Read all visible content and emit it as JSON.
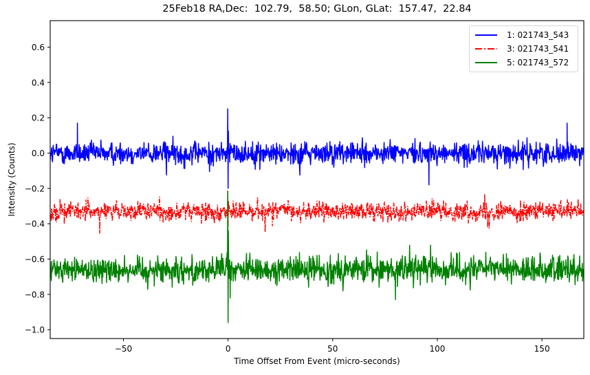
{
  "chart_data": {
    "type": "line",
    "title": "25Feb18 RA,Dec:  102.79,  58.50; GLon, GLat:  157.47,  22.84",
    "xlabel": "Time Offset From Event (micro-seconds)",
    "ylabel": "Intensity (Counts)",
    "xlim": [
      -85,
      170
    ],
    "ylim": [
      -1.05,
      0.75
    ],
    "xticks": [
      -50,
      0,
      50,
      100,
      150
    ],
    "xtick_labels": [
      "−50",
      "0",
      "50",
      "100",
      "150"
    ],
    "yticks": [
      0.6,
      0.4,
      0.2,
      0.0,
      -0.2,
      -0.4,
      -0.6,
      -0.8,
      -1.0
    ],
    "ytick_labels": [
      "0.6",
      "0.4",
      "0.2",
      "0.0",
      "−0.2",
      "−0.4",
      "−0.6",
      "−0.8",
      "−1.0"
    ],
    "grid": false,
    "legend_position": "upper right",
    "series": [
      {
        "name": "1: 021743_543",
        "color": "#0000ff",
        "linestyle": "solid",
        "baseline": 0.0,
        "noise_range": [
          -0.1,
          0.1
        ],
        "spike_at_zero": {
          "max": 0.25,
          "min": -0.2
        },
        "notable_points": [
          {
            "x": -72,
            "y": 0.17
          },
          {
            "x": 96,
            "y": -0.18
          },
          {
            "x": 162,
            "y": 0.17
          }
        ]
      },
      {
        "name": "3: 021743_541",
        "color": "#ff0000",
        "linestyle": "dashdot",
        "baseline": -0.33,
        "noise_range": [
          -0.41,
          -0.25
        ],
        "spike_at_zero": {
          "max": -0.21,
          "min": -0.42
        },
        "notable_points": []
      },
      {
        "name": "5: 021743_572",
        "color": "#008000",
        "linestyle": "solid",
        "baseline": -0.66,
        "noise_range": [
          -0.78,
          -0.55
        ],
        "spike_at_zero": {
          "max": -0.22,
          "min": -0.96
        },
        "notable_points": [
          {
            "x": 80,
            "y": -0.83
          },
          {
            "x": 1,
            "y": -0.82
          }
        ]
      }
    ]
  },
  "legend": {
    "items": [
      {
        "label": "1: 021743_543",
        "color": "#0000ff",
        "style": "solid"
      },
      {
        "label": "3: 021743_541",
        "color": "#ff0000",
        "style": "dashdot"
      },
      {
        "label": "5: 021743_572",
        "color": "#008000",
        "style": "solid"
      }
    ]
  }
}
